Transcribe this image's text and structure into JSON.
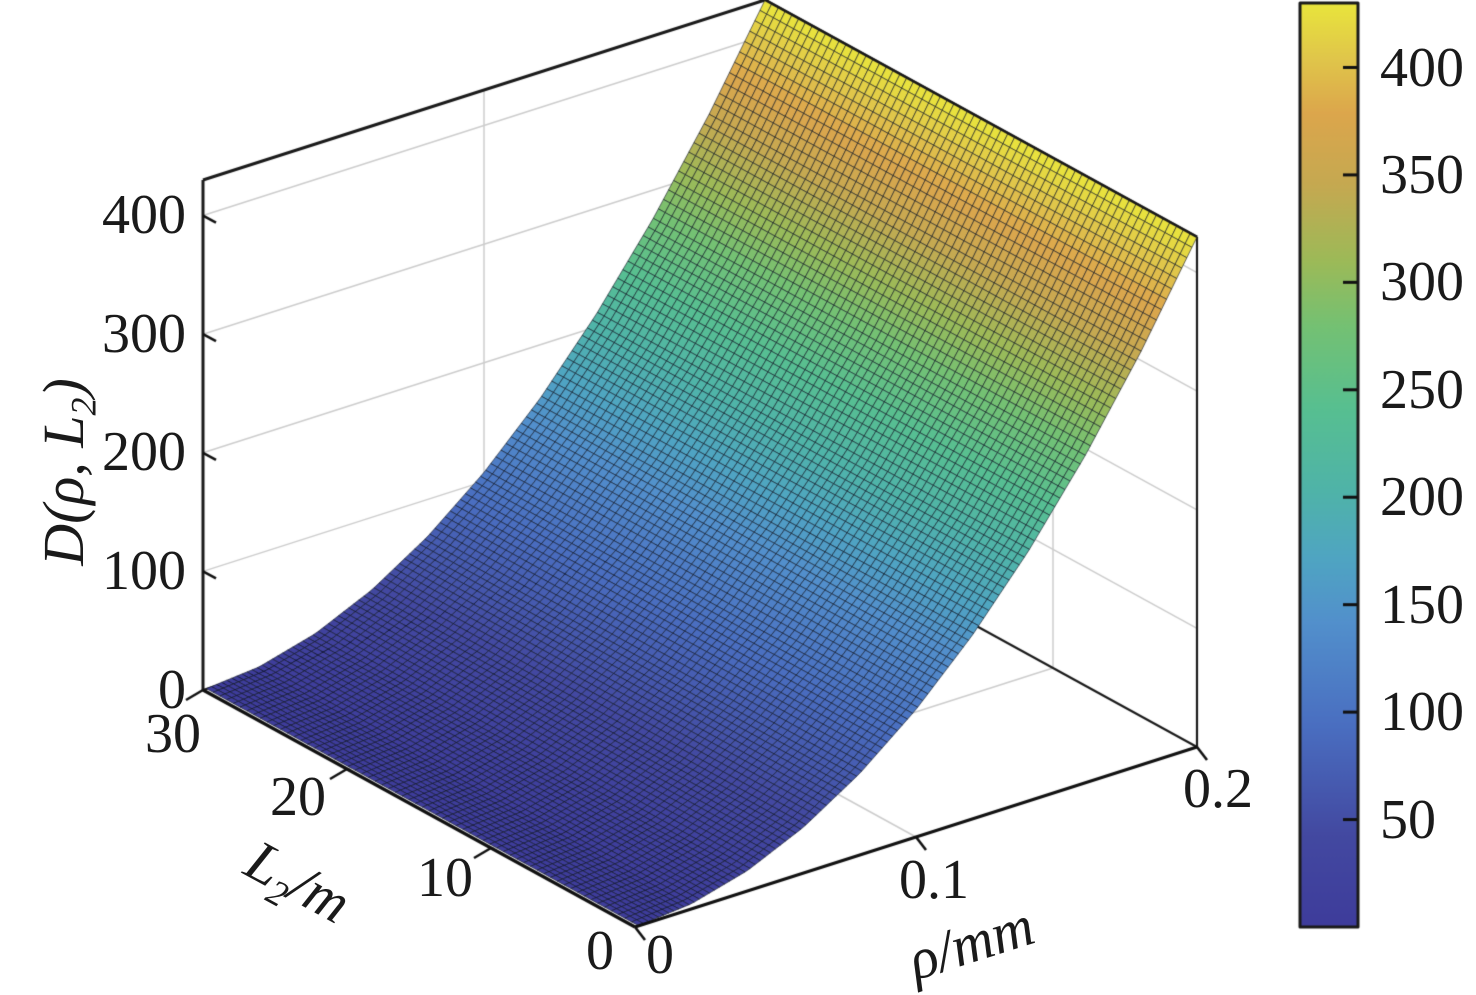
{
  "figure": {
    "background": "#ffffff",
    "edge_color": "#1a1a1a",
    "grid_color": "#cccccc",
    "mesh_line_color": "#0a1420"
  },
  "chart_data": {
    "type": "surface",
    "title": "",
    "view": "3d",
    "grid": true,
    "axes": {
      "x": {
        "label": "ρ/mm",
        "min": 0,
        "max": 0.2,
        "ticks": [
          0,
          0.1,
          0.2
        ],
        "tick_labels": [
          "0",
          "0.1",
          "0.2"
        ]
      },
      "y": {
        "label_base": "L",
        "label_sub": "2",
        "label_rest": "/m",
        "min": 0,
        "max": 30,
        "ticks": [
          0,
          10,
          20,
          30
        ],
        "tick_labels": [
          "0",
          "10",
          "20",
          "30"
        ]
      },
      "z": {
        "label_pre": "D(ρ, L",
        "label_sub": "2",
        "label_post": ")",
        "min": 0,
        "max": 430,
        "ticks": [
          0,
          100,
          200,
          300,
          400
        ],
        "tick_labels": [
          "0",
          "100",
          "200",
          "300",
          "400"
        ]
      }
    },
    "surface": {
      "formula": "D(rho, L2) = 430*(rho/0.2)^2, approximately independent of L2",
      "rho_mm": [
        0,
        0.02,
        0.04,
        0.06,
        0.08,
        0.1,
        0.12,
        0.14,
        0.16,
        0.18,
        0.2
      ],
      "D_vs_rho": [
        0,
        4.3,
        17.2,
        38.7,
        68.8,
        107.5,
        154.8,
        210.7,
        275.2,
        348.3,
        430
      ],
      "L2_m": [
        0,
        10,
        20,
        30
      ],
      "mesh": {
        "n_rho": 110,
        "n_L2": 64
      }
    },
    "colorbar": {
      "min": 0,
      "max": 430,
      "ticks": [
        50,
        100,
        150,
        200,
        250,
        300,
        350,
        400
      ],
      "tick_labels": [
        "50",
        "100",
        "150",
        "200",
        "250",
        "300",
        "350",
        "400"
      ],
      "colormap": "parula-like",
      "stops": [
        [
          0.0,
          "#3e3c9b"
        ],
        [
          0.1,
          "#4349a1"
        ],
        [
          0.22,
          "#4a6fc1"
        ],
        [
          0.33,
          "#5290cc"
        ],
        [
          0.4,
          "#4fa5c2"
        ],
        [
          0.47,
          "#4fb3a9"
        ],
        [
          0.56,
          "#57bf91"
        ],
        [
          0.65,
          "#74c173"
        ],
        [
          0.72,
          "#9cba58"
        ],
        [
          0.8,
          "#c4a951"
        ],
        [
          0.88,
          "#dca64c"
        ],
        [
          0.94,
          "#e0c64a"
        ],
        [
          1.0,
          "#e9e53c"
        ]
      ]
    }
  }
}
